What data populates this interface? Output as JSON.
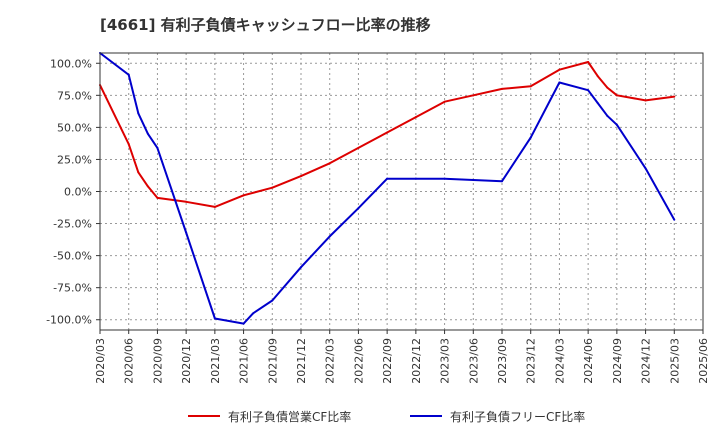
{
  "chart_data": {
    "type": "line",
    "title": "[4661]  有利子負債キャッシュフロー比率の推移",
    "xlabel": "",
    "ylabel": "",
    "ylim": [
      -108,
      108
    ],
    "yticks": [
      100,
      75,
      50,
      25,
      0,
      -25,
      -50,
      -75,
      -100
    ],
    "ytick_labels": [
      "100.0%",
      "75.0%",
      "50.0%",
      "25.0%",
      "0.0%",
      "-25.0%",
      "-50.0%",
      "-75.0%",
      "-100.0%"
    ],
    "xlim": [
      "2020/03",
      "2025/06"
    ],
    "xtick_labels": [
      "2020/03",
      "2020/06",
      "2020/09",
      "2020/12",
      "2021/03",
      "2021/06",
      "2021/09",
      "2021/12",
      "2022/03",
      "2022/06",
      "2022/09",
      "2022/12",
      "2023/03",
      "2023/06",
      "2023/09",
      "2023/12",
      "2024/03",
      "2024/06",
      "2024/09",
      "2024/12",
      "2025/03",
      "2025/06"
    ],
    "grid": true,
    "legend_position": "bottom",
    "series": [
      {
        "name": "有利子負債営業CF比率",
        "color": "#dd0000",
        "points": [
          [
            "2020/03",
            83
          ],
          [
            "2020/06",
            37
          ],
          [
            "2020/07",
            15
          ],
          [
            "2020/08",
            4
          ],
          [
            "2020/09",
            -5
          ],
          [
            "2020/12",
            -8
          ],
          [
            "2021/03",
            -12
          ],
          [
            "2021/06",
            -3
          ],
          [
            "2021/09",
            3
          ],
          [
            "2021/12",
            12
          ],
          [
            "2022/03",
            22
          ],
          [
            "2022/06",
            34
          ],
          [
            "2022/09",
            46
          ],
          [
            "2022/12",
            58
          ],
          [
            "2023/03",
            70
          ],
          [
            "2023/06",
            75
          ],
          [
            "2023/09",
            80
          ],
          [
            "2023/12",
            82
          ],
          [
            "2024/03",
            95
          ],
          [
            "2024/06",
            101
          ],
          [
            "2024/07",
            90
          ],
          [
            "2024/08",
            81
          ],
          [
            "2024/09",
            75
          ],
          [
            "2024/12",
            71
          ],
          [
            "2025/03",
            74
          ]
        ]
      },
      {
        "name": "有利子負債フリーCF比率",
        "color": "#0000cc",
        "points": [
          [
            "2020/03",
            108
          ],
          [
            "2020/06",
            91
          ],
          [
            "2020/07",
            61
          ],
          [
            "2020/08",
            45
          ],
          [
            "2020/09",
            34
          ],
          [
            "2020/12",
            -32
          ],
          [
            "2021/03",
            -99
          ],
          [
            "2021/06",
            -103
          ],
          [
            "2021/07",
            -95
          ],
          [
            "2021/09",
            -85
          ],
          [
            "2021/12",
            -59
          ],
          [
            "2022/03",
            -35
          ],
          [
            "2022/06",
            -13
          ],
          [
            "2022/09",
            10
          ],
          [
            "2022/12",
            10
          ],
          [
            "2023/03",
            10
          ],
          [
            "2023/06",
            9
          ],
          [
            "2023/09",
            8
          ],
          [
            "2023/12",
            42
          ],
          [
            "2024/03",
            85
          ],
          [
            "2024/06",
            79
          ],
          [
            "2024/07",
            69
          ],
          [
            "2024/08",
            59
          ],
          [
            "2024/09",
            52
          ],
          [
            "2024/12",
            18
          ],
          [
            "2025/03",
            -22
          ]
        ]
      }
    ]
  }
}
